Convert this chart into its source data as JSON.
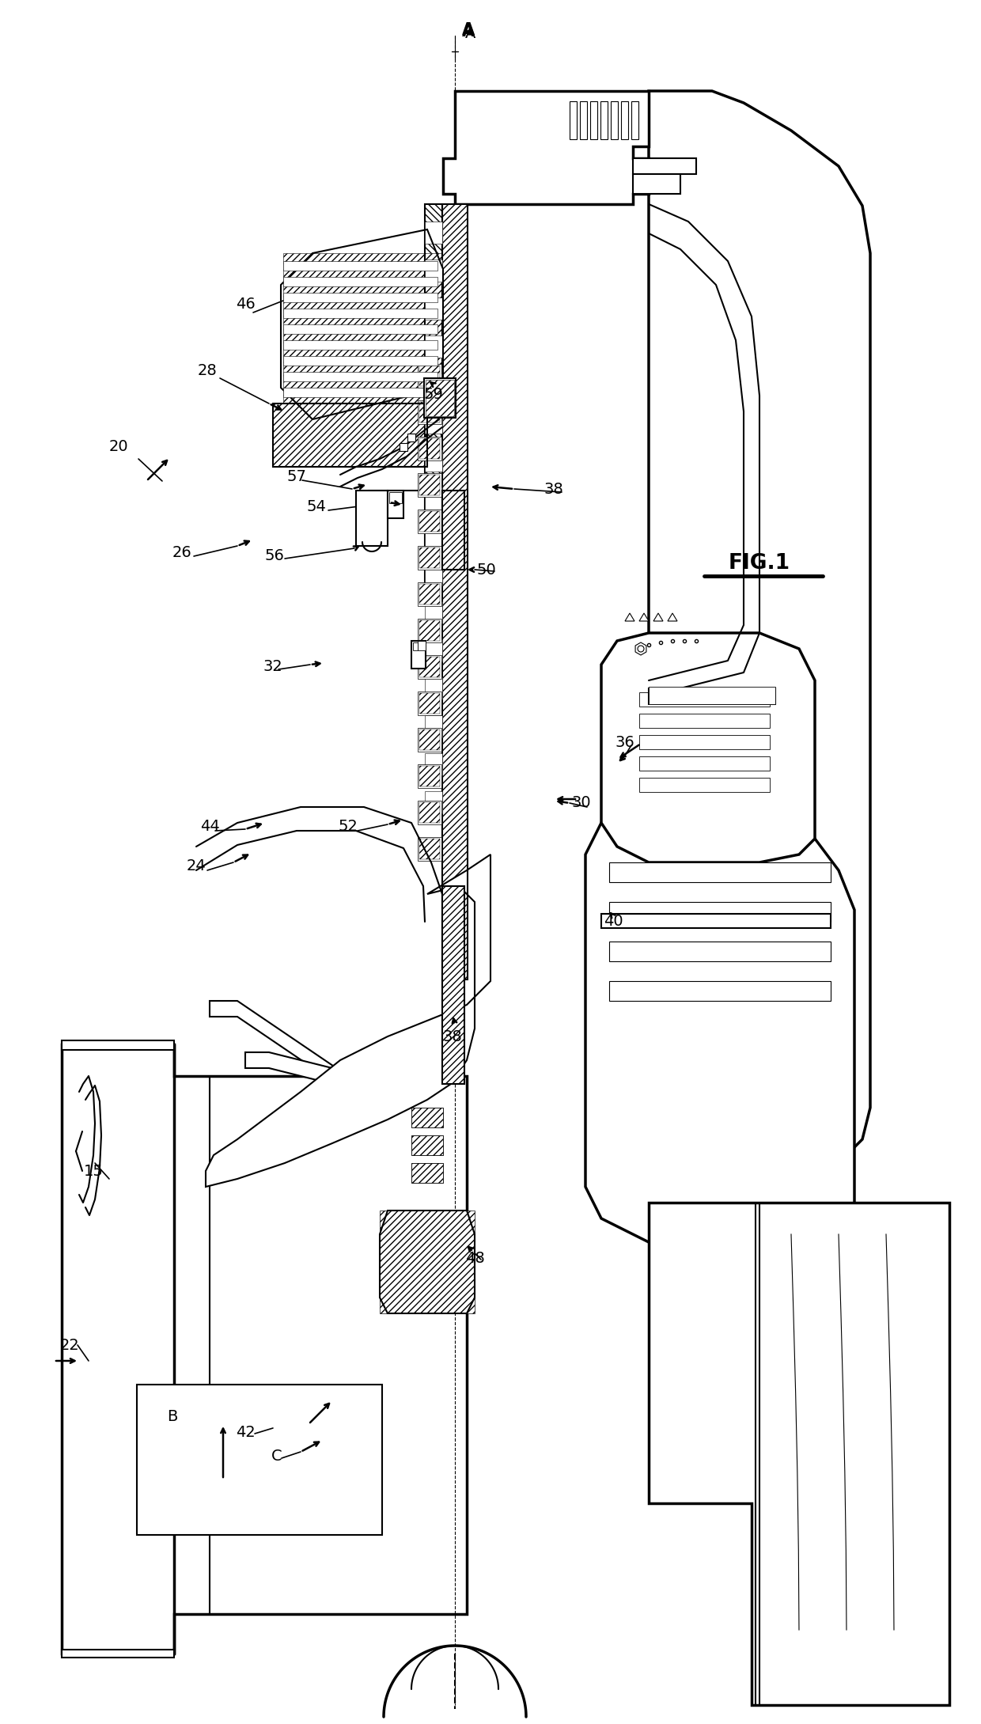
{
  "bg_color": "#ffffff",
  "line_color": "#000000",
  "labels": [
    [
      "A",
      595,
      42
    ],
    [
      "20",
      150,
      565
    ],
    [
      "22",
      88,
      1700
    ],
    [
      "15",
      118,
      1480
    ],
    [
      "B",
      218,
      1790
    ],
    [
      "42",
      310,
      1810
    ],
    [
      "C",
      350,
      1840
    ],
    [
      "24",
      248,
      1095
    ],
    [
      "26",
      230,
      698
    ],
    [
      "28",
      262,
      468
    ],
    [
      "30",
      735,
      1015
    ],
    [
      "32",
      345,
      842
    ],
    [
      "36",
      790,
      938
    ],
    [
      "38",
      700,
      618
    ],
    [
      "38",
      572,
      1310
    ],
    [
      "40",
      775,
      1165
    ],
    [
      "44",
      265,
      1045
    ],
    [
      "46",
      310,
      385
    ],
    [
      "48",
      600,
      1590
    ],
    [
      "50",
      615,
      720
    ],
    [
      "52",
      440,
      1045
    ],
    [
      "54",
      400,
      640
    ],
    [
      "56",
      347,
      702
    ],
    [
      "57",
      375,
      602
    ],
    [
      "59",
      548,
      498
    ]
  ]
}
